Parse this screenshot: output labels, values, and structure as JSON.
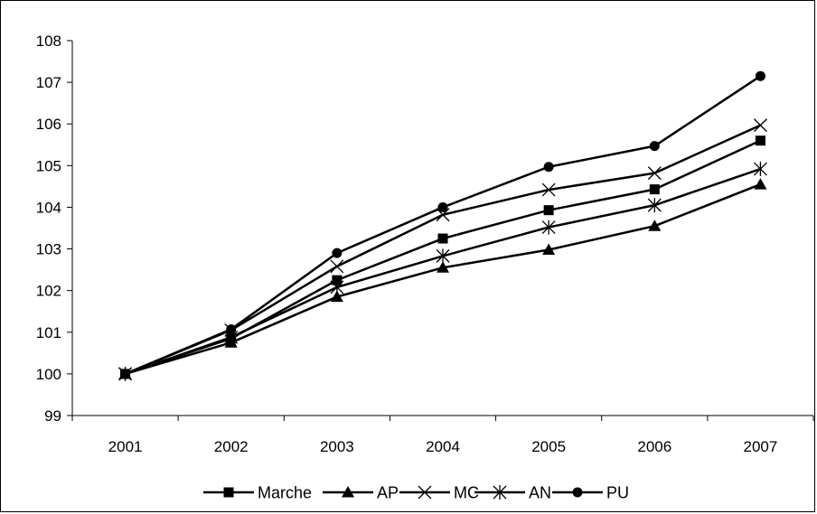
{
  "chart_data": {
    "type": "line",
    "title": "",
    "xlabel": "",
    "ylabel": "",
    "categories": [
      "2001",
      "2002",
      "2003",
      "2004",
      "2005",
      "2006",
      "2007"
    ],
    "ylim": [
      99,
      108
    ],
    "yticks": [
      99,
      100,
      101,
      102,
      103,
      104,
      105,
      106,
      107,
      108
    ],
    "grid": false,
    "legend_position": "bottom",
    "series": [
      {
        "name": "Marche",
        "marker": "square",
        "values": [
          100.0,
          100.85,
          102.25,
          103.25,
          103.93,
          104.43,
          105.6
        ]
      },
      {
        "name": "AP",
        "marker": "triangle",
        "values": [
          100.0,
          100.75,
          101.85,
          102.55,
          102.98,
          103.55,
          104.55
        ]
      },
      {
        "name": "MC",
        "marker": "x",
        "values": [
          100.0,
          101.05,
          102.58,
          103.82,
          104.42,
          104.82,
          105.97
        ]
      },
      {
        "name": "AN",
        "marker": "asterisk",
        "values": [
          100.0,
          100.88,
          102.08,
          102.83,
          103.52,
          104.05,
          104.92
        ]
      },
      {
        "name": "PU",
        "marker": "circle",
        "values": [
          100.0,
          101.07,
          102.9,
          104.0,
          104.97,
          105.47,
          107.15
        ]
      }
    ]
  }
}
